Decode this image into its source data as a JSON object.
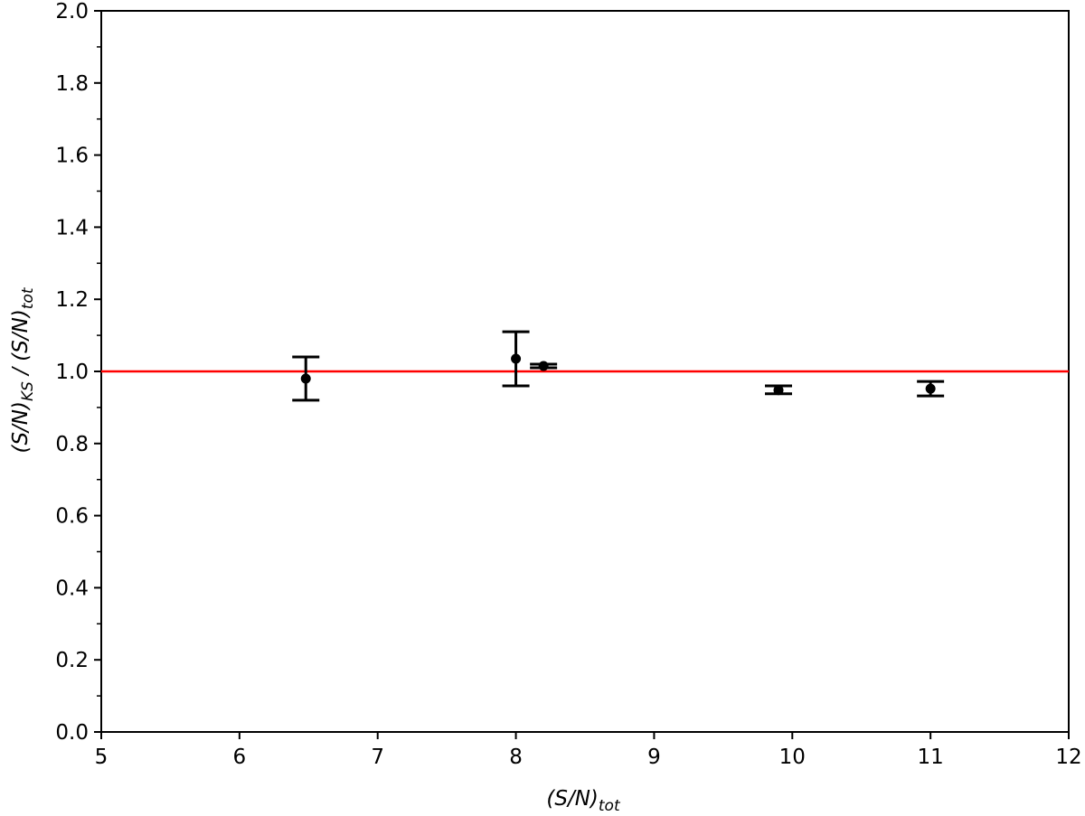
{
  "chart_data": {
    "type": "scatter",
    "title": "",
    "xlabel": {
      "main": "(S/N)",
      "sub": "tot"
    },
    "ylabel": {
      "main1": "(S/N)",
      "sub1": "KS",
      "sep": " / ",
      "main2": "(S/N)",
      "sub2": "tot"
    },
    "xlim": [
      5,
      12
    ],
    "ylim": [
      0.0,
      2.0
    ],
    "x_ticks": [
      "5",
      "6",
      "7",
      "8",
      "9",
      "10",
      "11",
      "12"
    ],
    "y_ticks": [
      "0.0",
      "0.2",
      "0.4",
      "0.6",
      "0.8",
      "1.0",
      "1.2",
      "1.4",
      "1.6",
      "1.8",
      "2.0"
    ],
    "grid": false,
    "reference_line": {
      "y": 1.0,
      "color": "#ff0000"
    },
    "points": [
      {
        "x": 6.48,
        "y": 0.98,
        "ylow": 0.92,
        "yhigh": 1.04
      },
      {
        "x": 8.0,
        "y": 1.035,
        "ylow": 0.96,
        "yhigh": 1.11
      },
      {
        "x": 8.2,
        "y": 1.015,
        "ylow": 1.01,
        "yhigh": 1.02
      },
      {
        "x": 9.9,
        "y": 0.948,
        "ylow": 0.938,
        "yhigh": 0.96
      },
      {
        "x": 11.0,
        "y": 0.952,
        "ylow": 0.932,
        "yhigh": 0.972
      }
    ],
    "marker_color": "#000000"
  }
}
